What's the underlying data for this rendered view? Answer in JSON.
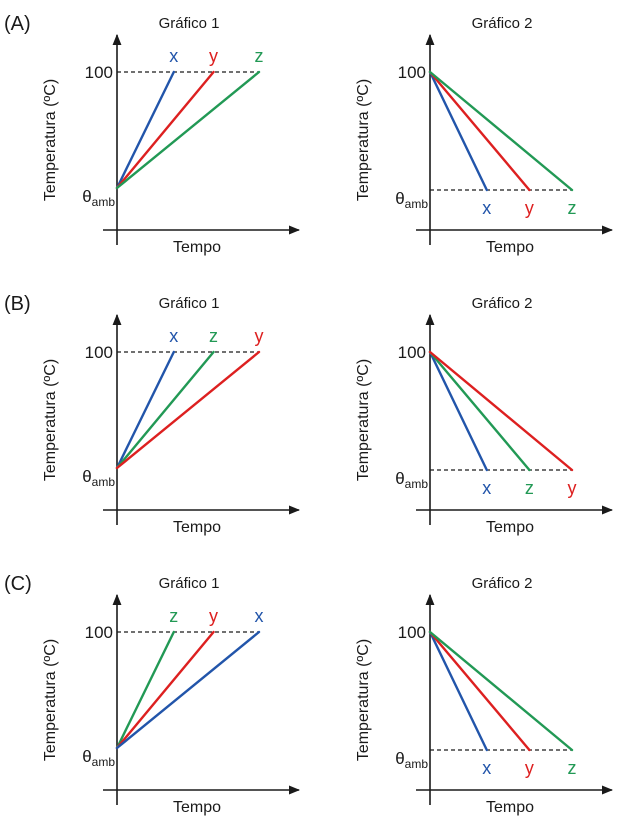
{
  "panels": [
    {
      "label": "(A)",
      "charts": [
        {
          "chart_data": {
            "type": "line",
            "title": "Gráfico 1",
            "xlabel": "Tempo",
            "ylabel": "Temperatura (ºC)",
            "yticks": [
              "θamb",
              "100"
            ],
            "ylim": [
              "θamb",
              100
            ],
            "reference_line": 100,
            "process": "heating",
            "series": [
              {
                "name": "x",
                "color": "#2255aa",
                "x": [
                  0,
                  1.0
                ],
                "y": [
                  "θamb",
                  100
                ]
              },
              {
                "name": "y",
                "color": "#dd2020",
                "x": [
                  0,
                  1.7
                ],
                "y": [
                  "θamb",
                  100
                ]
              },
              {
                "name": "z",
                "color": "#229955",
                "x": [
                  0,
                  2.5
                ],
                "y": [
                  "θamb",
                  100
                ]
              }
            ]
          }
        },
        {
          "chart_data": {
            "type": "line",
            "title": "Gráfico 2",
            "xlabel": "Tempo",
            "ylabel": "Temperatura (ºC)",
            "yticks": [
              "θamb",
              "100"
            ],
            "ylim": [
              "θamb",
              100
            ],
            "reference_line": "θamb",
            "process": "cooling",
            "series": [
              {
                "name": "x",
                "color": "#2255aa",
                "x": [
                  0,
                  1.0
                ],
                "y": [
                  100,
                  "θamb"
                ]
              },
              {
                "name": "y",
                "color": "#dd2020",
                "x": [
                  0,
                  1.75
                ],
                "y": [
                  100,
                  "θamb"
                ]
              },
              {
                "name": "z",
                "color": "#229955",
                "x": [
                  0,
                  2.5
                ],
                "y": [
                  100,
                  "θamb"
                ]
              }
            ]
          }
        }
      ]
    },
    {
      "label": "(B)",
      "charts": [
        {
          "chart_data": {
            "type": "line",
            "title": "Gráfico 1",
            "xlabel": "Tempo",
            "ylabel": "Temperatura (ºC)",
            "yticks": [
              "θamb",
              "100"
            ],
            "ylim": [
              "θamb",
              100
            ],
            "reference_line": 100,
            "process": "heating",
            "series": [
              {
                "name": "x",
                "color": "#2255aa",
                "x": [
                  0,
                  1.0
                ],
                "y": [
                  "θamb",
                  100
                ]
              },
              {
                "name": "z",
                "color": "#229955",
                "x": [
                  0,
                  1.7
                ],
                "y": [
                  "θamb",
                  100
                ]
              },
              {
                "name": "y",
                "color": "#dd2020",
                "x": [
                  0,
                  2.5
                ],
                "y": [
                  "θamb",
                  100
                ]
              }
            ]
          }
        },
        {
          "chart_data": {
            "type": "line",
            "title": "Gráfico 2",
            "xlabel": "Tempo",
            "ylabel": "Temperatura (ºC)",
            "yticks": [
              "θamb",
              "100"
            ],
            "ylim": [
              "θamb",
              100
            ],
            "reference_line": "θamb",
            "process": "cooling",
            "series": [
              {
                "name": "x",
                "color": "#2255aa",
                "x": [
                  0,
                  1.0
                ],
                "y": [
                  100,
                  "θamb"
                ]
              },
              {
                "name": "z",
                "color": "#229955",
                "x": [
                  0,
                  1.75
                ],
                "y": [
                  100,
                  "θamb"
                ]
              },
              {
                "name": "y",
                "color": "#dd2020",
                "x": [
                  0,
                  2.5
                ],
                "y": [
                  100,
                  "θamb"
                ]
              }
            ]
          }
        }
      ]
    },
    {
      "label": "(C)",
      "charts": [
        {
          "chart_data": {
            "type": "line",
            "title": "Gráfico 1",
            "xlabel": "Tempo",
            "ylabel": "Temperatura (ºC)",
            "yticks": [
              "θamb",
              "100"
            ],
            "ylim": [
              "θamb",
              100
            ],
            "reference_line": 100,
            "process": "heating",
            "series": [
              {
                "name": "z",
                "color": "#229955",
                "x": [
                  0,
                  1.0
                ],
                "y": [
                  "θamb",
                  100
                ]
              },
              {
                "name": "y",
                "color": "#dd2020",
                "x": [
                  0,
                  1.7
                ],
                "y": [
                  "θamb",
                  100
                ]
              },
              {
                "name": "x",
                "color": "#2255aa",
                "x": [
                  0,
                  2.5
                ],
                "y": [
                  "θamb",
                  100
                ]
              }
            ]
          }
        },
        {
          "chart_data": {
            "type": "line",
            "title": "Gráfico 2",
            "xlabel": "Tempo",
            "ylabel": "Temperatura (ºC)",
            "yticks": [
              "θamb",
              "100"
            ],
            "ylim": [
              "θamb",
              100
            ],
            "reference_line": "θamb",
            "process": "cooling",
            "series": [
              {
                "name": "x",
                "color": "#2255aa",
                "x": [
                  0,
                  1.0
                ],
                "y": [
                  100,
                  "θamb"
                ]
              },
              {
                "name": "y",
                "color": "#dd2020",
                "x": [
                  0,
                  1.75
                ],
                "y": [
                  100,
                  "θamb"
                ]
              },
              {
                "name": "z",
                "color": "#229955",
                "x": [
                  0,
                  2.5
                ],
                "y": [
                  100,
                  "θamb"
                ]
              }
            ]
          }
        }
      ]
    }
  ]
}
